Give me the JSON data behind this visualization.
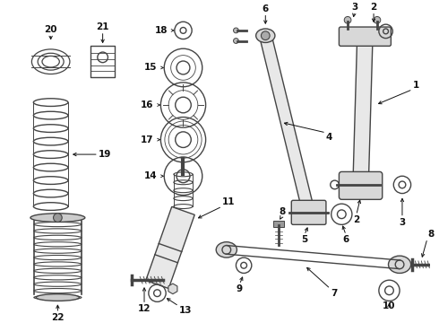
{
  "bg_color": "#ffffff",
  "line_color": "#444444",
  "label_color": "#111111",
  "figsize": [
    4.9,
    3.6
  ],
  "dpi": 100
}
